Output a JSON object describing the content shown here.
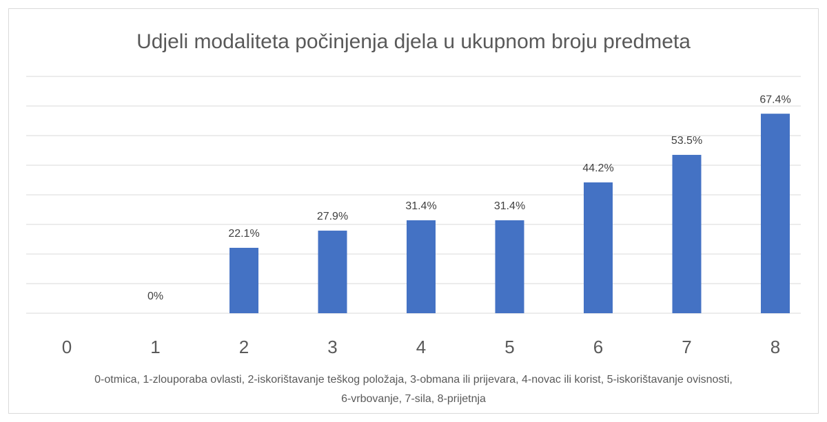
{
  "chart_data": {
    "type": "bar",
    "title": "Udjeli modaliteta počinjenja djela u ukupnom broju predmeta",
    "categories": [
      "0",
      "1",
      "2",
      "3",
      "4",
      "5",
      "6",
      "7",
      "8"
    ],
    "values": [
      null,
      0,
      22.1,
      27.9,
      31.4,
      31.4,
      44.2,
      53.5,
      67.4
    ],
    "value_labels": [
      null,
      "0%",
      "22.1%",
      "27.9%",
      "31.4%",
      "31.4%",
      "44.2%",
      "53.5%",
      "67.4%"
    ],
    "color": "#4472c4",
    "ylim": [
      0,
      80
    ],
    "yticks": [
      0,
      10,
      20,
      30,
      40,
      50,
      60,
      70,
      80
    ],
    "grid": true,
    "xlabel": "0-otmica, 1-zlouporaba ovlasti, 2-iskorištavanje teškog položaja, 3-obmana ili prijevara, 4-novac ili korist, 5-iskorištavanje ovisnosti, 6-vrbovanje, 7-sila, 8-prijetnja"
  }
}
